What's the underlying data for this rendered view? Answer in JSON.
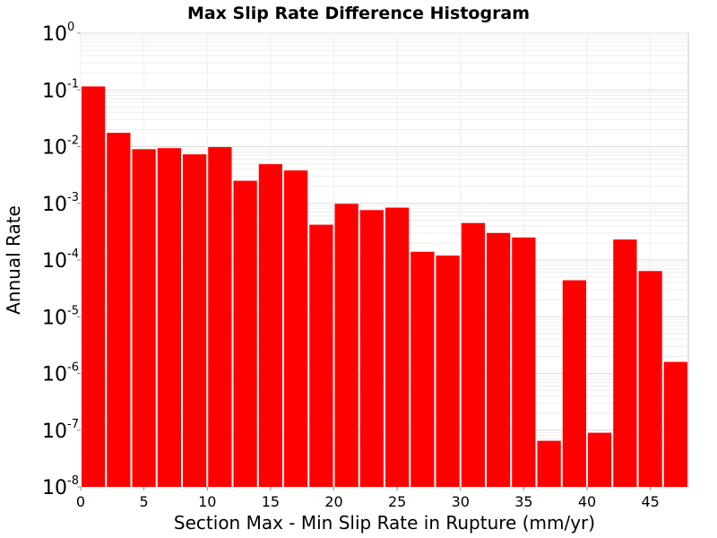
{
  "chart_data": {
    "type": "bar",
    "title": "Max Slip Rate Difference Histogram",
    "xlabel": "Section Max - Min Slip Rate in Rupture (mm/yr)",
    "ylabel": "Annual Rate",
    "x_ticks": [
      0,
      5,
      10,
      15,
      20,
      25,
      30,
      35,
      40,
      45
    ],
    "xlim": [
      0,
      48
    ],
    "ylim": [
      1e-08,
      1
    ],
    "y_scale": "log",
    "y_tick_base": "10",
    "y_tick_exponents": [
      "-8",
      "-7",
      "-6",
      "-5",
      "-4",
      "-3",
      "-2",
      "-1",
      "0"
    ],
    "bar_width": 2,
    "bar_color": "#ff0000",
    "grid": true,
    "bins": [
      {
        "x": 0,
        "value": 0.115
      },
      {
        "x": 2,
        "value": 0.0175
      },
      {
        "x": 4,
        "value": 0.009
      },
      {
        "x": 6,
        "value": 0.0094
      },
      {
        "x": 8,
        "value": 0.0073
      },
      {
        "x": 10,
        "value": 0.0098
      },
      {
        "x": 12,
        "value": 0.0025
      },
      {
        "x": 14,
        "value": 0.0049
      },
      {
        "x": 16,
        "value": 0.0038
      },
      {
        "x": 18,
        "value": 0.00042
      },
      {
        "x": 20,
        "value": 0.00098
      },
      {
        "x": 22,
        "value": 0.00076
      },
      {
        "x": 24,
        "value": 0.00084
      },
      {
        "x": 26,
        "value": 0.00014
      },
      {
        "x": 28,
        "value": 0.00012
      },
      {
        "x": 30,
        "value": 0.00045
      },
      {
        "x": 32,
        "value": 0.0003
      },
      {
        "x": 34,
        "value": 0.00025
      },
      {
        "x": 36,
        "value": 6.5e-08
      },
      {
        "x": 38,
        "value": 4.4e-05
      },
      {
        "x": 40,
        "value": 9e-08
      },
      {
        "x": 42,
        "value": 0.00023
      },
      {
        "x": 44,
        "value": 6.4e-05
      },
      {
        "x": 46,
        "value": 1.6e-06
      }
    ]
  }
}
